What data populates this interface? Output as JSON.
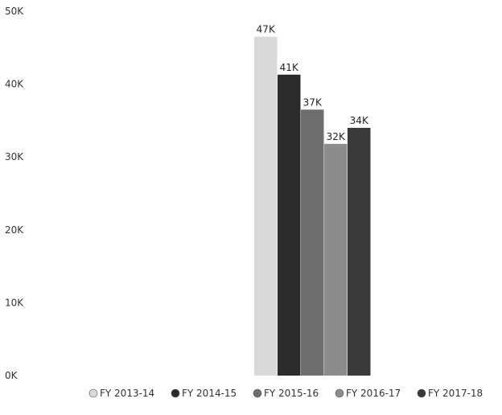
{
  "chart_data": {
    "type": "bar",
    "title": "",
    "xlabel": "",
    "ylabel": "",
    "ylim": [
      0,
      50000
    ],
    "y_ticks": [
      {
        "value": 0,
        "label": "0K"
      },
      {
        "value": 10000,
        "label": "10K"
      },
      {
        "value": 20000,
        "label": "20K"
      },
      {
        "value": 30000,
        "label": "30K"
      },
      {
        "value": 40000,
        "label": "40K"
      },
      {
        "value": 50000,
        "label": "50K"
      }
    ],
    "grid": false,
    "legend_position": "bottom",
    "series": [
      {
        "name": "FY 2013-14",
        "value": 46500,
        "label": "47K",
        "color": "#d9d9d9"
      },
      {
        "name": "FY 2014-15",
        "value": 41300,
        "label": "41K",
        "color": "#2b2b2b"
      },
      {
        "name": "FY 2015-16",
        "value": 36500,
        "label": "37K",
        "color": "#6e6e6e"
      },
      {
        "name": "FY 2016-17",
        "value": 31800,
        "label": "32K",
        "color": "#8c8c8c"
      },
      {
        "name": "FY 2017-18",
        "value": 34000,
        "label": "34K",
        "color": "#3a3a3a"
      }
    ]
  }
}
